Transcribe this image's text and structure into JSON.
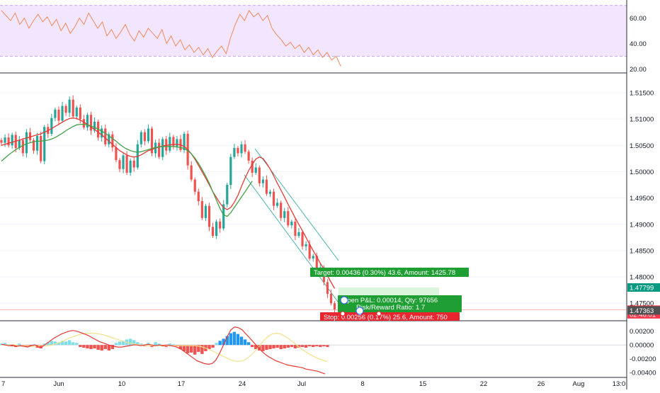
{
  "chart_data": [
    {
      "type": "line",
      "indicator": "RSI",
      "ylim": [
        18,
        72
      ],
      "band": [
        30,
        70
      ],
      "y_ticks": [
        "60.00",
        "40.00",
        "20.00"
      ],
      "y_tick_values": [
        60,
        40,
        20
      ],
      "series": [
        {
          "values": [
            66,
            62,
            58,
            64,
            55,
            60,
            52,
            58,
            63,
            57,
            61,
            54,
            59,
            50,
            56,
            48,
            53,
            60,
            55,
            64,
            58,
            52,
            57,
            46,
            51,
            44,
            49,
            55,
            47,
            42,
            50,
            45,
            52,
            48,
            44,
            51,
            40,
            46,
            38,
            43,
            35,
            39,
            33,
            37,
            31,
            36,
            29,
            34,
            38,
            32,
            45,
            55,
            63,
            58,
            66,
            61,
            64,
            58,
            62,
            52,
            47,
            43,
            38,
            41,
            36,
            39,
            33,
            37,
            31,
            35,
            29,
            33,
            27,
            30,
            22
          ]
        }
      ]
    },
    {
      "type": "candlestick",
      "ylim": [
        1.4718,
        1.5185
      ],
      "y_ticks": [
        "1.51500",
        "1.51000",
        "1.50500",
        "1.50000",
        "1.49500",
        "1.49000",
        "1.48500",
        "1.48000",
        "1.47500"
      ],
      "y_tick_values": [
        1.515,
        1.51,
        1.505,
        1.5,
        1.495,
        1.49,
        1.485,
        1.48,
        1.475
      ],
      "series": [
        {
          "name": "close",
          "values": [
            1.5055,
            1.5065,
            1.505,
            1.507,
            1.5045,
            1.506,
            1.5035,
            1.5075,
            1.506,
            1.504,
            1.5068,
            1.502,
            1.5085,
            1.5072,
            1.5102,
            1.5118,
            1.5097,
            1.5125,
            1.5112,
            1.5137,
            1.5105,
            1.5122,
            1.51,
            1.5084,
            1.5108,
            1.5078,
            1.5095,
            1.5065,
            1.5082,
            1.5052,
            1.5071,
            1.5046,
            1.5022,
            1.5005,
            1.5031,
            1.4998,
            1.5021,
            1.5008,
            1.5052,
            1.5075,
            1.5058,
            1.5082,
            1.5035,
            1.5055,
            1.5028,
            1.5062,
            1.504,
            1.5066,
            1.5048,
            1.5062,
            1.5041,
            1.5072,
            1.5012,
            1.4985,
            1.4962,
            1.4944,
            1.4912,
            1.4935,
            1.4895,
            1.4878,
            1.4905,
            1.4892,
            1.4938,
            1.4975,
            1.5028,
            1.5045,
            1.5035,
            1.5052,
            1.5038,
            1.5021,
            1.4998,
            1.5008,
            1.4978,
            1.4985,
            1.4958,
            1.4962,
            1.4935,
            1.4941,
            1.4912,
            1.4925,
            1.4898,
            1.4905,
            1.4878,
            1.4885,
            1.4858,
            1.4862,
            1.4835,
            1.484,
            1.4812,
            1.4818,
            1.479,
            1.4768,
            1.475,
            1.4738
          ]
        },
        {
          "name": "ma_red",
          "values": [
            1.505,
            1.5052,
            1.5054,
            1.5056,
            1.5058,
            1.506,
            1.5062,
            1.5064,
            1.5066,
            1.5068,
            1.507,
            1.5072,
            1.5075,
            1.5078,
            1.5082,
            1.5086,
            1.509,
            1.5094,
            1.5098,
            1.5101,
            1.5102,
            1.5101,
            1.5098,
            1.5094,
            1.509,
            1.5085,
            1.508,
            1.5075,
            1.507,
            1.5064,
            1.5058,
            1.5052,
            1.5046,
            1.504,
            1.5036,
            1.5032,
            1.5029,
            1.5028,
            1.5029,
            1.5032,
            1.5036,
            1.504,
            1.5042,
            1.5045,
            1.5047,
            1.5049,
            1.505,
            1.5051,
            1.5052,
            1.5052,
            1.5051,
            1.5048,
            1.5042,
            1.5034,
            1.5024,
            1.5012,
            1.5,
            1.4988,
            1.4975,
            1.4962,
            1.4951,
            1.494,
            1.4932,
            1.4928,
            1.4932,
            1.4942,
            1.4955,
            1.4972,
            1.4988,
            1.5002,
            1.5014,
            1.5024,
            1.5028,
            1.5025,
            1.5016,
            1.5005,
            1.4992,
            1.4978,
            1.4965,
            1.4952,
            1.4938,
            1.4925,
            1.4912,
            1.49,
            1.4888,
            1.4875,
            1.4862,
            1.485,
            1.4838,
            1.4826,
            1.4815,
            1.4802,
            1.479,
            1.4778
          ]
        },
        {
          "name": "ma_green",
          "values": [
            1.502,
            1.5026,
            1.5032,
            1.5037,
            1.5042,
            1.5046,
            1.505,
            1.5053,
            1.5055,
            1.5057,
            1.5058,
            1.5058,
            1.5059,
            1.506,
            1.5062,
            1.5065,
            1.5069,
            1.5073,
            1.5078,
            1.5082,
            1.5086,
            1.5089,
            1.509,
            1.509,
            1.5089,
            1.5087,
            1.5084,
            1.5081,
            1.5077,
            1.5073,
            1.5068,
            1.5063,
            1.5058,
            1.5052,
            1.5047,
            1.5043,
            1.504,
            1.5038,
            1.5037,
            1.5038,
            1.504,
            1.5042,
            1.5044,
            1.5046,
            1.5047,
            1.5048,
            1.5048,
            1.5048,
            1.5048,
            1.5047,
            1.5046,
            1.5044,
            1.504,
            1.5034,
            1.5026,
            1.5016,
            1.5004,
            1.4992,
            1.4978,
            1.4962,
            1.4946,
            1.493,
            1.4918,
            1.4915,
            1.4922,
            1.4932,
            1.4942,
            1.4952,
            1.4962,
            1.4972,
            1.4982
          ]
        }
      ],
      "price_labels": [
        {
          "text": "1.47799",
          "value": 1.47799,
          "color": "#089981"
        },
        {
          "text": "1.47377",
          "value": 1.47377,
          "color": "#f23645"
        },
        {
          "text": "02:46:01",
          "value": 1.4729,
          "color": "#f23645"
        },
        {
          "text": "1.47363",
          "value": 1.47363,
          "color": "#505050"
        }
      ],
      "position": {
        "entry": 1.47363,
        "target": 1.47799,
        "stop": 1.4711,
        "target_label": "Target: 0.00436 (0.30%) 43.6, Amount: 1425.78",
        "pnl_label": "Open P&L: 0.00014, Qty: 97656",
        "rr_label": "Risk/Reward Ratio: 1.7",
        "stop_label": "Stop: 0.00256 (0.17%) 25.6, Amount: 750"
      }
    },
    {
      "type": "bar",
      "indicator": "MACD",
      "ylim": [
        -0.0045,
        0.0032
      ],
      "y_ticks": [
        "0.00200",
        "0.00000",
        "-0.00200",
        "-0.00400"
      ],
      "y_tick_values": [
        0.002,
        0.0,
        -0.002,
        -0.004
      ],
      "series": [
        {
          "name": "histogram",
          "values": [
            0.0002,
            0.0003,
            0.0001,
            -0.0002,
            -0.0003,
            0.0002,
            -0.0002,
            -0.0003,
            -0.0002,
            0.0001,
            -0.0004,
            -0.0005,
            0.0002,
            0.0004,
            0.0006,
            0.0005,
            0.0004,
            0.0006,
            0.0005,
            0.0007,
            0.0004,
            0.0003,
            -0.0003,
            -0.0004,
            -0.0005,
            -0.0006,
            -0.0005,
            -0.0007,
            -0.0008,
            -0.0006,
            -0.0008,
            -0.0006,
            0.0003,
            0.0005,
            0.0006,
            0.0008,
            0.0009,
            0.0007,
            0.0004,
            0.0002,
            -0.0002,
            0.0003,
            -0.0003,
            0.0004,
            0.0002,
            -0.0002,
            -0.0003,
            0.0002,
            0.0001,
            -0.0002,
            -0.0006,
            -0.0009,
            -0.0012,
            -0.0011,
            -0.0014,
            -0.001,
            -0.0013,
            -0.0009,
            -0.0006,
            -0.0004,
            0.0003,
            0.0006,
            0.0009,
            0.0013,
            0.0017,
            0.0019,
            0.0016,
            0.0012,
            0.0008,
            0.0004,
            -0.0003,
            -0.0006,
            -0.0008,
            -0.0009,
            -0.0007,
            -0.0006,
            -0.0005,
            -0.0004,
            -0.0006,
            -0.0005,
            -0.0004,
            -0.0003,
            -0.0005,
            -0.0004,
            -0.0003,
            -0.0004,
            -0.0002,
            -0.0003,
            -0.0002,
            -0.0003,
            -0.0002,
            -0.0003
          ]
        },
        {
          "name": "macd",
          "values": [
            0.0001,
            0.0,
            -0.0001,
            0.0,
            -0.0002,
            -0.0001,
            -0.0002,
            -0.0003,
            -0.0001,
            0.0,
            -0.0003,
            -0.0002,
            0.0002,
            0.0006,
            0.001,
            0.0013,
            0.0016,
            0.0018,
            0.002,
            0.0021,
            0.002,
            0.0018,
            0.0016,
            0.0014,
            0.0011,
            0.0008,
            0.0005,
            0.0003,
            0.0001,
            -0.0001,
            -0.0002,
            -0.0003,
            -0.0003,
            -0.0002,
            -0.0001,
            0.0,
            0.0,
            -0.0001,
            0.0,
            0.0001,
            0.0,
            -0.0001,
            0.0,
            -0.0001,
            0.0,
            -0.0001,
            -0.0002,
            -0.0004,
            -0.0007,
            -0.0011,
            -0.0015,
            -0.0019,
            -0.0023,
            -0.0025,
            -0.0027,
            -0.0028,
            -0.0027,
            -0.0022,
            -0.0012,
            0.0,
            0.0012,
            0.0022,
            0.0026,
            0.0025,
            0.0022,
            0.0016,
            0.001,
            0.0004,
            -0.0002,
            -0.0008,
            -0.0013,
            -0.0017,
            -0.002,
            -0.0023,
            -0.0025,
            -0.0027,
            -0.0029,
            -0.003,
            -0.0031,
            -0.0032,
            -0.0033,
            -0.0035,
            -0.0036,
            -0.0037,
            -0.0038,
            -0.004,
            -0.0042
          ]
        },
        {
          "name": "signal",
          "values": [
            0.0,
            0.0,
            0.0,
            0.0,
            -0.0001,
            -0.0001,
            -0.0001,
            -0.0002,
            -0.0002,
            -0.0001,
            -0.0001,
            -0.0001,
            0.0,
            0.0002,
            0.0004,
            0.0007,
            0.001,
            0.0012,
            0.0014,
            0.0016,
            0.0017,
            0.0017,
            0.0017,
            0.0016,
            0.0015,
            0.0013,
            0.0011,
            0.0009,
            0.0007,
            0.0005,
            0.0003,
            0.0002,
            0.0001,
            0.0,
            -0.0001,
            -0.0001,
            -0.0001,
            -0.0001,
            -0.0001,
            -0.0001,
            -0.0001,
            -0.0001,
            -0.0001,
            -0.0001,
            -0.0001,
            -0.0001,
            -0.0001,
            -0.0002,
            -0.0004,
            -0.0006,
            -0.0009,
            -0.0012,
            -0.0015,
            -0.0018,
            -0.0021,
            -0.0023,
            -0.0024,
            -0.0023,
            -0.002,
            -0.0015,
            -0.0009,
            -0.0002,
            0.0006,
            0.0012,
            0.0016,
            0.0017,
            0.0016,
            0.0013,
            0.0009,
            0.0004,
            -0.0001,
            -0.0006,
            -0.001,
            -0.0014,
            -0.0017,
            -0.002,
            -0.0022,
            -0.0024
          ]
        }
      ]
    }
  ],
  "x_axis": {
    "ticks": [
      "7",
      "Jun",
      "10",
      "17",
      "24",
      "Jul",
      "8",
      "15",
      "22",
      "26",
      "Aug",
      "13:0"
    ]
  },
  "colors": {
    "up": "#26a69a",
    "down": "#ef5350",
    "ma_red": "#e53935",
    "ma_green": "#43a047",
    "rsi_line": "#f08a5d",
    "rsi_band": "#f1e6fd",
    "target_zone": "#daf5dc",
    "target_tag": "#1e9e33",
    "stop_tag": "#e8262f",
    "grid": "#f0f3fa"
  }
}
